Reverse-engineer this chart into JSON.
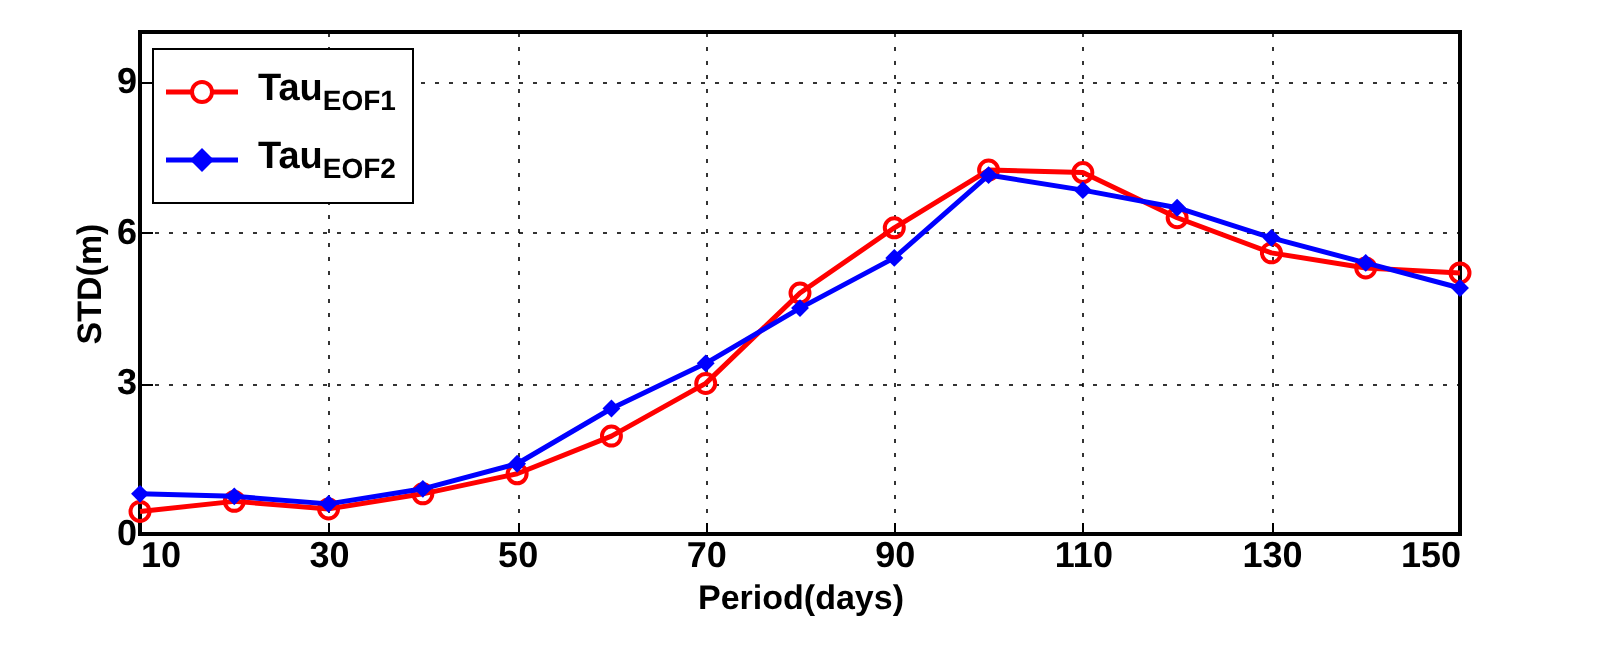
{
  "chart_data": {
    "type": "line",
    "xlabel": "Period(days)",
    "ylabel": "STD(m)",
    "x": [
      10,
      20,
      30,
      40,
      50,
      60,
      70,
      80,
      90,
      100,
      110,
      120,
      130,
      140,
      150
    ],
    "series": [
      {
        "name": "Tau$_{EOF1}$",
        "color": "#ff0000",
        "marker": "circle",
        "values": [
          0.45,
          0.65,
          0.5,
          0.8,
          1.2,
          1.95,
          3.0,
          4.8,
          6.1,
          7.25,
          7.2,
          6.3,
          5.6,
          5.3,
          5.2
        ]
      },
      {
        "name": "Tau$_{EOF2}$",
        "color": "#0000ff",
        "marker": "diamond",
        "values": [
          0.8,
          0.75,
          0.6,
          0.9,
          1.4,
          2.5,
          3.4,
          4.5,
          5.5,
          7.15,
          6.85,
          6.5,
          5.9,
          5.4,
          4.9
        ]
      }
    ],
    "xlim": [
      10,
      150
    ],
    "xticks": [
      10,
      30,
      50,
      70,
      90,
      110,
      130,
      150
    ],
    "ylim": [
      0,
      10
    ],
    "yticks": [
      0,
      3,
      6,
      9
    ],
    "grid": true,
    "legend": "top left",
    "line_style": "solid"
  }
}
